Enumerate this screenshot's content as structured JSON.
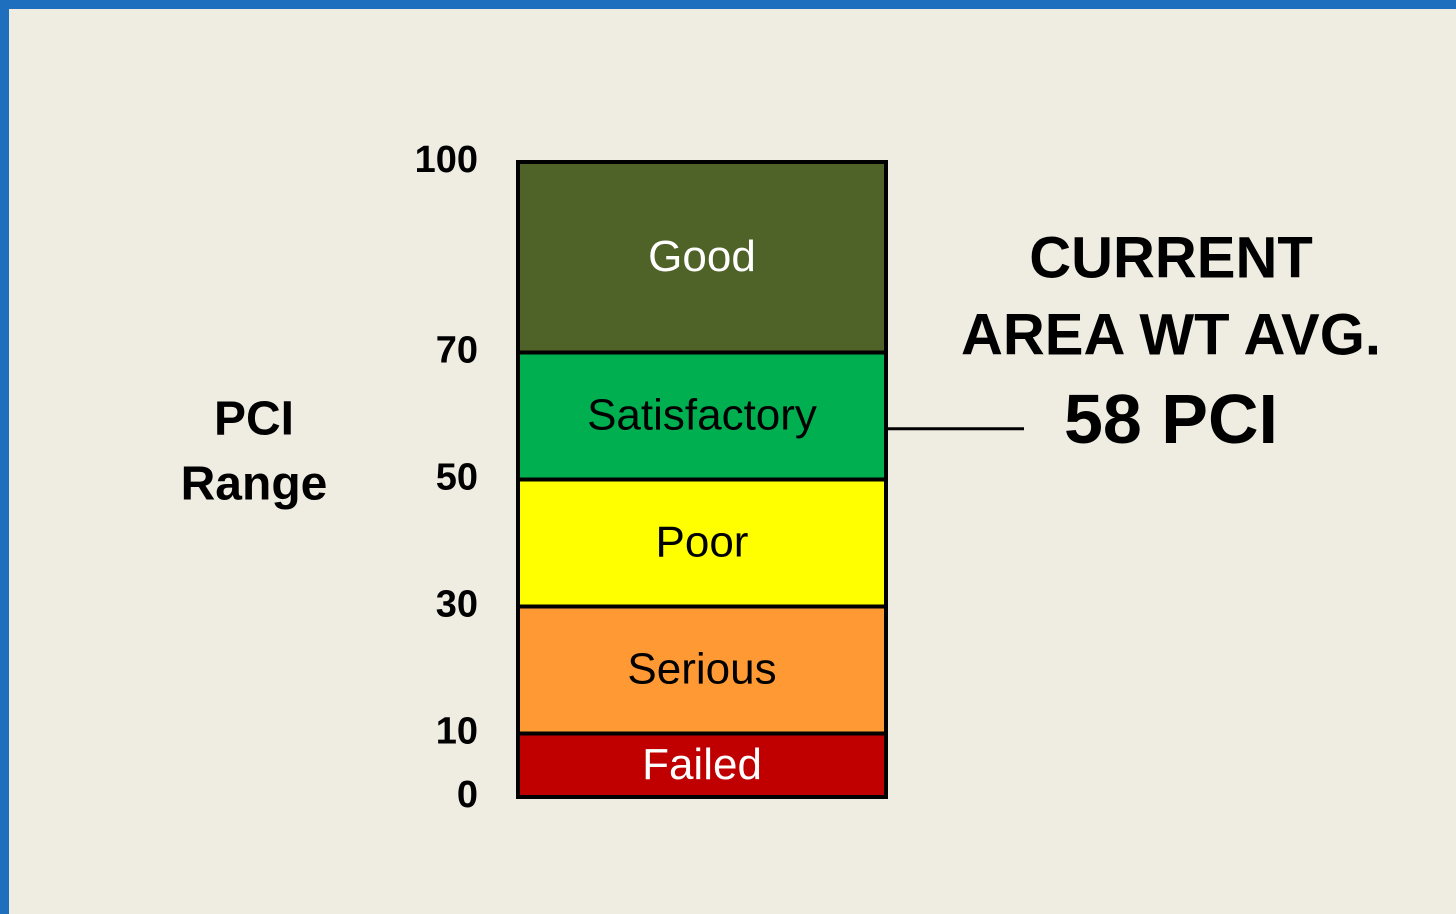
{
  "chart_data": {
    "type": "stacked_bar",
    "ylabel_lines": [
      "PCI",
      "Range"
    ],
    "categories": [
      null
    ],
    "series": [
      {
        "name": "Failed",
        "color": "#c00000",
        "text_color": "#ffffff",
        "values": [
          10
        ]
      },
      {
        "name": "Serious",
        "color": "#ff9933",
        "text_color": "#000000",
        "values": [
          20
        ]
      },
      {
        "name": "Poor",
        "color": "#ffff00",
        "text_color": "#000000",
        "values": [
          20
        ]
      },
      {
        "name": "Satisfactory",
        "color": "#00b050",
        "text_color": "#000000",
        "values": [
          20
        ]
      },
      {
        "name": "Good",
        "color": "#4f6228",
        "text_color": "#ffffff",
        "values": [
          30
        ]
      }
    ],
    "ylim": [
      0,
      100
    ],
    "yticks": [
      0,
      10,
      30,
      50,
      70,
      100
    ],
    "annotation": {
      "lines": [
        "CURRENT",
        "AREA WT AVG."
      ],
      "value": 58,
      "value_label": "58 PCI"
    }
  }
}
